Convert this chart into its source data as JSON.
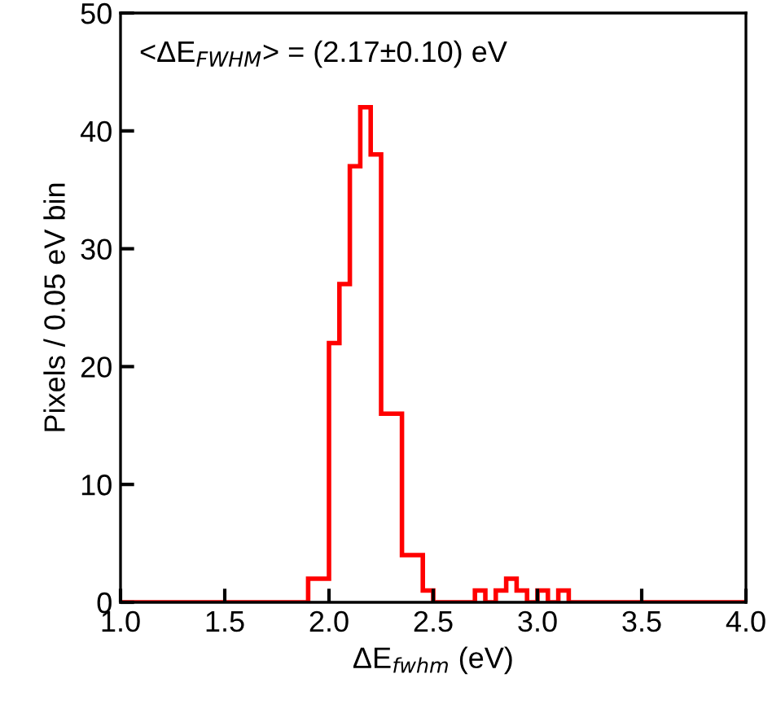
{
  "chart_data": {
    "type": "histogram",
    "xlabel": "ΔE$_{fwhm}$ (eV)",
    "ylabel": "Pixels / 0.05 eV bin",
    "annotations": [
      "<ΔE$_{FWHM}$> = (2.17±0.10) eV"
    ],
    "bins": [
      1.0,
      1.05,
      1.1,
      1.15,
      1.2,
      1.25,
      1.3,
      1.35,
      1.4,
      1.45,
      1.5,
      1.55,
      1.6,
      1.65,
      1.7,
      1.75,
      1.8,
      1.85,
      1.9,
      1.95,
      2.0,
      2.05,
      2.1,
      2.15,
      2.2,
      2.25,
      2.3,
      2.35,
      2.4,
      2.45,
      2.5,
      2.55,
      2.6,
      2.65,
      2.7,
      2.75,
      2.8,
      2.85,
      2.9,
      2.95,
      3.0,
      3.05,
      3.1,
      3.15,
      3.2,
      3.25,
      3.3,
      3.35,
      3.4,
      3.45,
      3.5,
      3.55,
      3.6,
      3.65,
      3.7,
      3.75,
      3.8,
      3.85,
      3.9,
      3.95,
      4.0
    ],
    "values": [
      0,
      0,
      0,
      0,
      0,
      0,
      0,
      0,
      0,
      0,
      0,
      0,
      0,
      0,
      0,
      0,
      0,
      0,
      2,
      2,
      22,
      27,
      37,
      42,
      38,
      16,
      16,
      4,
      4,
      1,
      0,
      0,
      0,
      0,
      1,
      0,
      1,
      2,
      1,
      0,
      1,
      0,
      1,
      0,
      0,
      0,
      0,
      0,
      0,
      0,
      0,
      0,
      0,
      0,
      0,
      0,
      0,
      0,
      0,
      0
    ],
    "color": "#ff0000",
    "xlim": [
      1.0,
      4.0
    ],
    "ylim": [
      0,
      50
    ],
    "xticks": [
      {
        "value": 1.0,
        "label": "1.0"
      },
      {
        "value": 1.5,
        "label": "1.5"
      },
      {
        "value": 2.0,
        "label": "2.0"
      },
      {
        "value": 2.5,
        "label": "2.5"
      },
      {
        "value": 3.0,
        "label": "3.0"
      },
      {
        "value": 3.5,
        "label": "3.5"
      },
      {
        "value": 4.0,
        "label": "4.0"
      }
    ],
    "yticks": [
      0,
      10,
      20,
      30,
      40,
      50
    ],
    "grid": false,
    "legend": false
  }
}
